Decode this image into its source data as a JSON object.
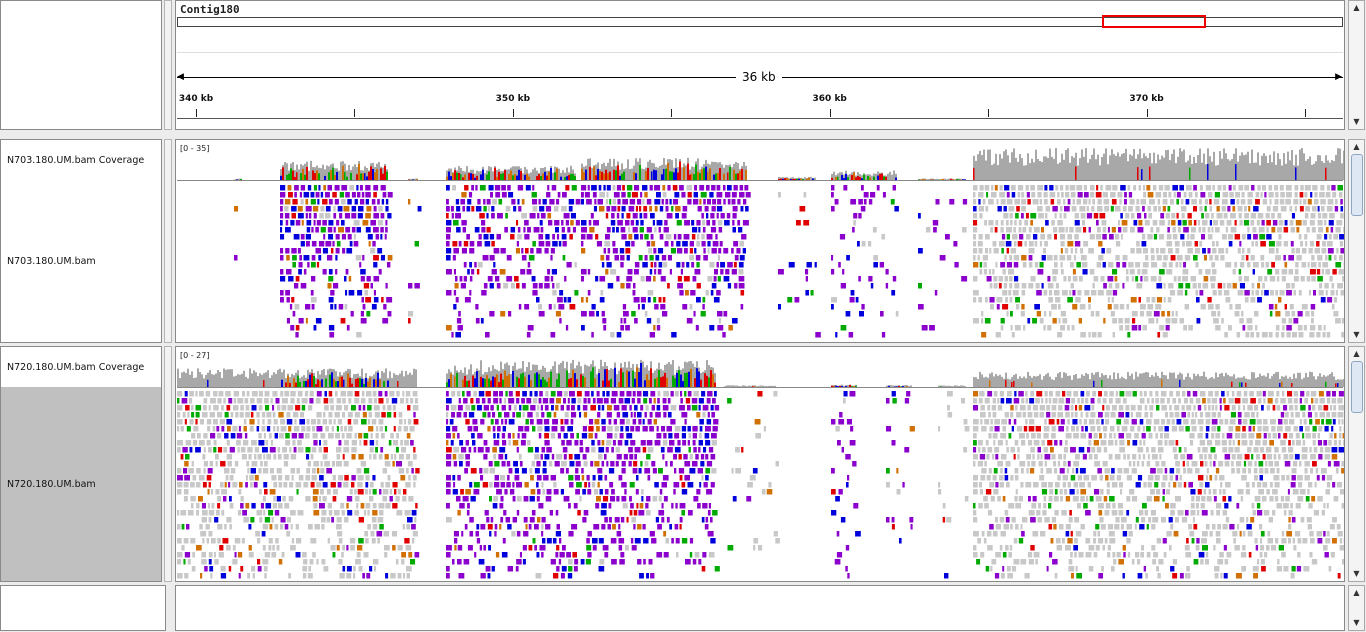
{
  "header": {
    "chromosome": "Contig180",
    "span_label": "36 kb",
    "ticks": [
      {
        "label": "340 kb",
        "pos": 340
      },
      {
        "label": "350 kb",
        "pos": 350
      },
      {
        "label": "360 kb",
        "pos": 360
      },
      {
        "label": "370 kb",
        "pos": 370
      }
    ],
    "view_start_kb": 339.4,
    "view_end_kb": 376.2,
    "ideogram_color": "#e00000"
  },
  "tracks": [
    {
      "coverage_label": "N703.180.UM.bam Coverage",
      "alignment_label": "N703.180.UM.bam",
      "range": "[0 - 35]",
      "selected": false
    },
    {
      "coverage_label": "N720.180.UM.bam Coverage",
      "alignment_label": "N720.180.UM.bam",
      "range": "[0 - 27]",
      "selected": true
    }
  ],
  "colors": {
    "coverage_gray": "#a8a8a8",
    "base_A": "#00aa00",
    "base_C": "#0000dd",
    "base_G": "#d17105",
    "base_T": "#e00000",
    "insertion": "#8b00cc",
    "read_gray": "#c8c8c8",
    "selected_bg": "#c0c0c0"
  }
}
